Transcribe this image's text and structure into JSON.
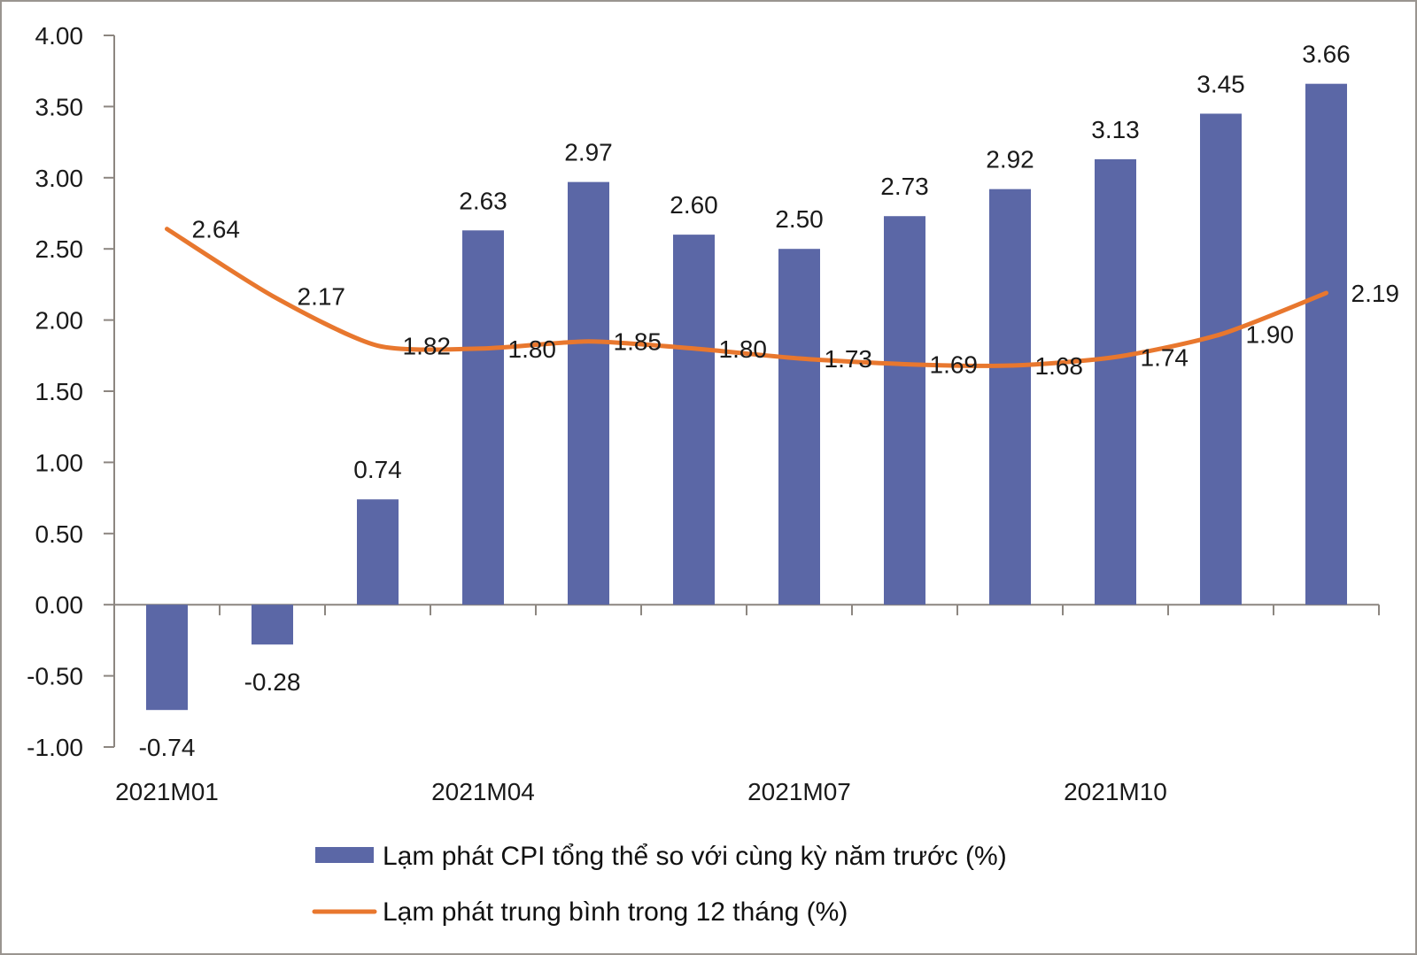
{
  "chart_data": {
    "type": "bar",
    "title": "",
    "xlabel": "",
    "ylabel": "",
    "ylim": [
      -1.0,
      4.0
    ],
    "yticks": [
      "4.00",
      "3.50",
      "3.00",
      "2.50",
      "2.00",
      "1.50",
      "1.00",
      "0.50",
      "0.00",
      "-0.50",
      "-1.00"
    ],
    "ytick_values": [
      4.0,
      3.5,
      3.0,
      2.5,
      2.0,
      1.5,
      1.0,
      0.5,
      0.0,
      -0.5,
      -1.0
    ],
    "grid": false,
    "categories": [
      "2021M01",
      "2021M02",
      "2021M03",
      "2021M04",
      "2021M05",
      "2021M06",
      "2021M07",
      "2021M08",
      "2021M09",
      "2021M10",
      "2021M11",
      "2021M12"
    ],
    "xtick_labels_shown": [
      {
        "index": 0,
        "label": "2021M01"
      },
      {
        "index": 3,
        "label": "2021M04"
      },
      {
        "index": 6,
        "label": "2021M07"
      },
      {
        "index": 9,
        "label": "2021M10"
      }
    ],
    "series": [
      {
        "name": "Lạm phát CPI tổng thể so với cùng kỳ năm trước (%)",
        "type": "bar",
        "color": "#5B67A6",
        "values": [
          -0.74,
          -0.28,
          0.74,
          2.63,
          2.97,
          2.6,
          2.5,
          2.73,
          2.92,
          3.13,
          3.45,
          3.66
        ],
        "labels": [
          "-0.74",
          "-0.28",
          "0.74",
          "2.63",
          "2.97",
          "2.60",
          "2.50",
          "2.73",
          "2.92",
          "3.13",
          "3.45",
          "3.66"
        ]
      },
      {
        "name": "Lạm phát trung bình trong 12 tháng (%)",
        "type": "line",
        "color": "#E8772E",
        "values": [
          2.64,
          2.17,
          1.82,
          1.8,
          1.85,
          1.8,
          1.73,
          1.69,
          1.68,
          1.74,
          1.9,
          2.19
        ],
        "labels": [
          "2.64",
          "2.17",
          "1.82",
          "1.80",
          "1.85",
          "1.80",
          "1.73",
          "1.69",
          "1.68",
          "1.74",
          "1.90",
          "2.19"
        ]
      }
    ],
    "legend": {
      "position": "bottom",
      "items": [
        {
          "label": "Lạm phát CPI tổng thể so với cùng kỳ năm trước (%)",
          "marker": "bar",
          "color": "#5B67A6"
        },
        {
          "label": "Lạm phát trung bình trong 12 tháng (%)",
          "marker": "line",
          "color": "#E8772E"
        }
      ]
    }
  }
}
